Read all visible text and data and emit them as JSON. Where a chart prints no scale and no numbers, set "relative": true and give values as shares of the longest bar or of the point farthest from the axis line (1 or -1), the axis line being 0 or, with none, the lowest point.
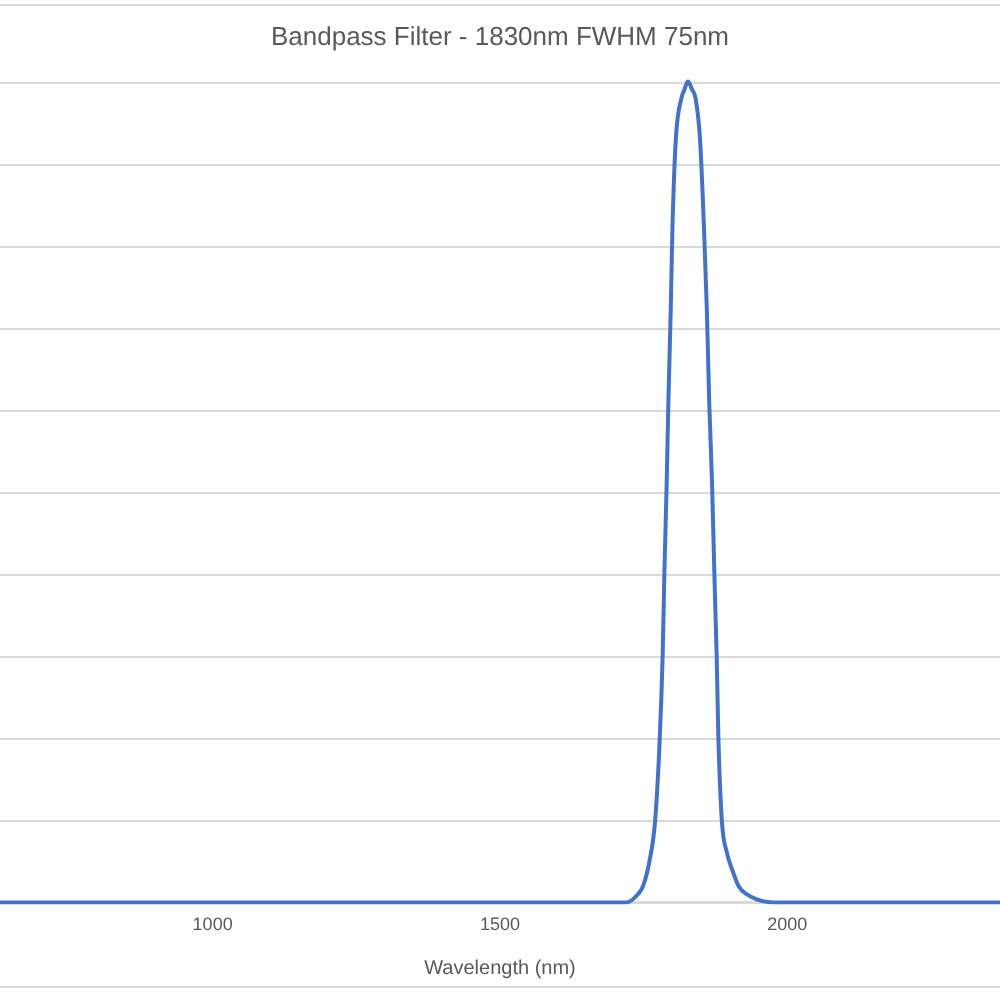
{
  "chart_data": {
    "type": "line",
    "title": "Bandpass Filter - 1830nm FWHM 75nm",
    "xlabel": "Wavelength (nm)",
    "x": [
      630,
      1000,
      1500,
      1700,
      1720,
      1740,
      1749,
      1760,
      1770,
      1778,
      1783,
      1786,
      1790,
      1793,
      1797,
      1800,
      1806,
      1816,
      1821,
      1827,
      1834,
      1840,
      1848,
      1855,
      1860,
      1864,
      1869,
      1873,
      1877,
      1880,
      1886,
      1895,
      1904,
      1915,
      1929,
      1976,
      2050,
      2370
    ],
    "values": [
      0,
      0,
      0,
      0,
      0,
      0.01,
      0.02,
      0.05,
      0.1,
      0.2,
      0.3,
      0.4,
      0.51,
      0.61,
      0.72,
      0.82,
      0.93,
      0.98,
      0.99,
      1,
      0.99,
      0.98,
      0.93,
      0.82,
      0.72,
      0.61,
      0.51,
      0.4,
      0.3,
      0.2,
      0.1,
      0.06,
      0.04,
      0.02,
      0.01,
      0,
      0,
      0
    ],
    "color": "#4472c4",
    "relative": true,
    "xlim": [
      630,
      2370
    ],
    "xticks": [
      1000,
      1500,
      2000
    ],
    "grid": "y"
  }
}
